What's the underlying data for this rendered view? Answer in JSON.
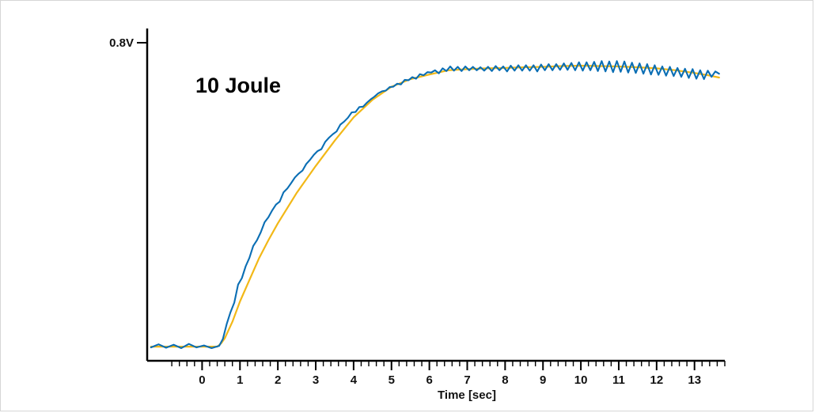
{
  "chart_data": {
    "type": "line",
    "annotation": "10 Joule",
    "xlabel": "Time [sec]",
    "ylabel_tick": "0.8V",
    "xlim": [
      -1.45,
      13.8
    ],
    "ylim": [
      0.0,
      0.8
    ],
    "x_ticks": [
      0,
      1,
      2,
      3,
      4,
      5,
      6,
      7,
      8,
      9,
      10,
      11,
      12,
      13
    ],
    "x_tick_labels": [
      "0",
      "1",
      "2",
      "3",
      "4",
      "5",
      "6",
      "7",
      "8",
      "9",
      "10",
      "11",
      "12",
      "13"
    ],
    "minor_tick_step": 0.2,
    "series": [
      {
        "kind": "measured",
        "color": "#0a6eb4",
        "x": [
          -1.35,
          -1.15,
          -0.95,
          -0.75,
          -0.55,
          -0.35,
          -0.15,
          0.05,
          0.25,
          0.45,
          0.55,
          0.65,
          0.75,
          0.85,
          0.95,
          1.05,
          1.15,
          1.25,
          1.35,
          1.45,
          1.55,
          1.65,
          1.75,
          1.85,
          1.95,
          2.05,
          2.15,
          2.25,
          2.35,
          2.45,
          2.55,
          2.65,
          2.75,
          2.85,
          2.95,
          3.05,
          3.15,
          3.25,
          3.35,
          3.45,
          3.55,
          3.65,
          3.75,
          3.85,
          3.95,
          4.05,
          4.15,
          4.25,
          4.35,
          4.45,
          4.55,
          4.65,
          4.75,
          4.85,
          4.95,
          5.05,
          5.15,
          5.25,
          5.35,
          5.45,
          5.55,
          5.65,
          5.75,
          5.85,
          5.95,
          6.05,
          6.15,
          6.25,
          6.35,
          6.45,
          6.55,
          6.65,
          6.75,
          6.85,
          6.95,
          7.05,
          7.15,
          7.25,
          7.35,
          7.45,
          7.55,
          7.65,
          7.75,
          7.85,
          7.95,
          8.05,
          8.15,
          8.25,
          8.35,
          8.45,
          8.55,
          8.65,
          8.75,
          8.85,
          8.95,
          9.05,
          9.15,
          9.25,
          9.35,
          9.45,
          9.55,
          9.65,
          9.75,
          9.85,
          9.95,
          10.05,
          10.15,
          10.25,
          10.35,
          10.45,
          10.55,
          10.65,
          10.75,
          10.85,
          10.95,
          11.05,
          11.15,
          11.25,
          11.35,
          11.45,
          11.55,
          11.65,
          11.75,
          11.85,
          11.95,
          12.05,
          12.15,
          12.25,
          12.35,
          12.45,
          12.55,
          12.65,
          12.75,
          12.85,
          12.95,
          13.05,
          13.15,
          13.25,
          13.35,
          13.45,
          13.55,
          13.65
        ],
        "y": [
          0.004,
          0.012,
          0.003,
          0.011,
          0.002,
          0.013,
          0.004,
          0.009,
          0.002,
          0.008,
          0.026,
          0.065,
          0.096,
          0.121,
          0.168,
          0.185,
          0.216,
          0.238,
          0.269,
          0.284,
          0.305,
          0.331,
          0.344,
          0.362,
          0.377,
          0.385,
          0.409,
          0.419,
          0.433,
          0.448,
          0.458,
          0.466,
          0.483,
          0.494,
          0.507,
          0.517,
          0.522,
          0.541,
          0.552,
          0.561,
          0.568,
          0.586,
          0.594,
          0.604,
          0.618,
          0.619,
          0.632,
          0.633,
          0.643,
          0.652,
          0.659,
          0.668,
          0.673,
          0.675,
          0.684,
          0.685,
          0.693,
          0.691,
          0.703,
          0.702,
          0.71,
          0.706,
          0.718,
          0.715,
          0.723,
          0.722,
          0.728,
          0.72,
          0.733,
          0.726,
          0.738,
          0.727,
          0.737,
          0.726,
          0.738,
          0.728,
          0.737,
          0.728,
          0.736,
          0.727,
          0.737,
          0.726,
          0.739,
          0.728,
          0.738,
          0.725,
          0.74,
          0.727,
          0.741,
          0.727,
          0.741,
          0.727,
          0.741,
          0.725,
          0.743,
          0.728,
          0.744,
          0.728,
          0.744,
          0.729,
          0.746,
          0.729,
          0.747,
          0.728,
          0.749,
          0.727,
          0.749,
          0.728,
          0.75,
          0.726,
          0.752,
          0.725,
          0.751,
          0.723,
          0.752,
          0.724,
          0.751,
          0.722,
          0.748,
          0.721,
          0.746,
          0.719,
          0.744,
          0.717,
          0.741,
          0.716,
          0.738,
          0.714,
          0.737,
          0.713,
          0.734,
          0.711,
          0.732,
          0.708,
          0.731,
          0.706,
          0.728,
          0.705,
          0.727,
          0.711,
          0.725,
          0.719
        ]
      },
      {
        "kind": "fit",
        "color": "#f2b817",
        "x": [
          -1.35,
          -1.0,
          -0.5,
          0.0,
          0.4,
          0.5,
          0.6,
          0.8,
          1.0,
          1.25,
          1.5,
          1.75,
          2.0,
          2.5,
          3.0,
          3.5,
          4.0,
          4.5,
          5.0,
          5.5,
          6.0,
          6.5,
          7.0,
          7.5,
          8.0,
          8.5,
          9.0,
          9.5,
          10.0,
          10.5,
          11.0,
          11.5,
          12.0,
          12.5,
          13.0,
          13.3,
          13.65
        ],
        "y": [
          0.006,
          0.006,
          0.006,
          0.006,
          0.006,
          0.014,
          0.028,
          0.071,
          0.124,
          0.18,
          0.236,
          0.284,
          0.328,
          0.408,
          0.478,
          0.544,
          0.605,
          0.651,
          0.685,
          0.705,
          0.717,
          0.728,
          0.731,
          0.733,
          0.734,
          0.736,
          0.737,
          0.739,
          0.74,
          0.739,
          0.738,
          0.736,
          0.733,
          0.728,
          0.721,
          0.716,
          0.709
        ]
      }
    ]
  }
}
